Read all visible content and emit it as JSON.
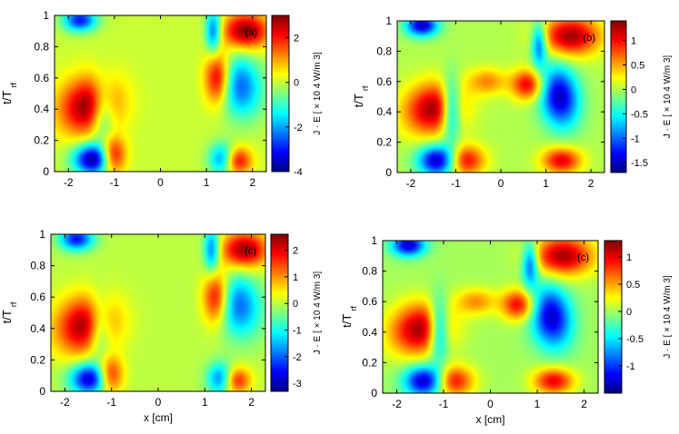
{
  "chart_data": [
    {
      "type": "heatmap",
      "panel_label": "(a)",
      "ylabel": "t/T",
      "ylabel_sub": "rf",
      "xlabel": "",
      "xlim": [
        -2.3,
        2.3
      ],
      "ylim": [
        0,
        1
      ],
      "xticks": [
        "-2",
        "-1",
        "0",
        "1",
        "2"
      ],
      "xtick_values": [
        -2,
        -1,
        0,
        1,
        2
      ],
      "yticks": [
        "0",
        "0.2",
        "0.4",
        "0.6",
        "0.8",
        "1"
      ],
      "ytick_values": [
        0,
        0.2,
        0.4,
        0.6,
        0.8,
        1
      ],
      "colorbar_label": "J · E [ × 10 4 W/m 3]",
      "colorbar_range": [
        -4,
        3
      ],
      "colorbar_ticks": [
        "2",
        "0",
        "-2",
        "-4"
      ],
      "colorbar_tick_values": [
        2,
        0,
        -2,
        -4
      ],
      "grid": false,
      "features": [
        {
          "x": -1.55,
          "t": 0.42,
          "amp": 3.0,
          "sx": 0.45,
          "st": 0.13,
          "tilt": 0.35
        },
        {
          "x": -1.25,
          "t": 0.38,
          "amp": -2.0,
          "sx": 0.18,
          "st": 0.14,
          "tilt": 0.0
        },
        {
          "x": -1.45,
          "t": 0.08,
          "amp": -4.0,
          "sx": 0.3,
          "st": 0.07,
          "tilt": 0.0
        },
        {
          "x": -1.05,
          "t": 0.1,
          "amp": 3.0,
          "sx": 0.2,
          "st": 0.08,
          "tilt": 0.0
        },
        {
          "x": -1.75,
          "t": 0.97,
          "amp": -3.0,
          "sx": 0.25,
          "st": 0.05,
          "tilt": 0.0
        },
        {
          "x": 1.25,
          "t": 0.6,
          "amp": 3.0,
          "sx": 0.2,
          "st": 0.12,
          "tilt": 0.0
        },
        {
          "x": 1.7,
          "t": 0.55,
          "amp": -2.5,
          "sx": 0.35,
          "st": 0.14,
          "tilt": -0.3
        },
        {
          "x": 1.85,
          "t": 0.9,
          "amp": 3.0,
          "sx": 0.35,
          "st": 0.08,
          "tilt": 0.0
        },
        {
          "x": 1.35,
          "t": 0.08,
          "amp": -2.5,
          "sx": 0.2,
          "st": 0.07,
          "tilt": 0.0
        },
        {
          "x": 1.65,
          "t": 0.07,
          "amp": 2.5,
          "sx": 0.22,
          "st": 0.06,
          "tilt": 0.0
        },
        {
          "x": 1.15,
          "t": 0.9,
          "amp": -2.5,
          "sx": 0.12,
          "st": 0.1,
          "tilt": 0.0
        }
      ]
    },
    {
      "type": "heatmap",
      "panel_label": "(b)",
      "ylabel": "t/T",
      "ylabel_sub": "rf",
      "xlabel": "",
      "xlim": [
        -2.3,
        2.3
      ],
      "ylim": [
        0,
        1
      ],
      "xticks": [
        "-2",
        "-1",
        "0",
        "1",
        "2"
      ],
      "xtick_values": [
        -2,
        -1,
        0,
        1,
        2
      ],
      "yticks": [
        "0",
        "0.2",
        "0.4",
        "0.6",
        "0.8",
        "1"
      ],
      "ytick_values": [
        0,
        0.2,
        0.4,
        0.6,
        0.8,
        1
      ],
      "colorbar_label": "J · E [ × 10 4 W/m 3]",
      "colorbar_range": [
        -1.7,
        1.4
      ],
      "colorbar_ticks": [
        "1",
        "0.5",
        "0",
        "-0.5",
        "-1",
        "-1.5"
      ],
      "colorbar_tick_values": [
        1,
        0.5,
        0,
        -0.5,
        -1,
        -1.5
      ],
      "grid": false,
      "features": [
        {
          "x": -1.5,
          "t": 0.42,
          "amp": 1.3,
          "sx": 0.45,
          "st": 0.12,
          "tilt": 0.35
        },
        {
          "x": -1.1,
          "t": 0.42,
          "amp": -1.2,
          "sx": 0.15,
          "st": 0.14,
          "tilt": 0.0
        },
        {
          "x": -1.4,
          "t": 0.08,
          "amp": -1.6,
          "sx": 0.3,
          "st": 0.07,
          "tilt": 0.0
        },
        {
          "x": -0.8,
          "t": 0.08,
          "amp": 1.1,
          "sx": 0.3,
          "st": 0.07,
          "tilt": 0.0
        },
        {
          "x": -0.3,
          "t": 0.6,
          "amp": 0.6,
          "sx": 0.3,
          "st": 0.06,
          "tilt": 0.0
        },
        {
          "x": 0.6,
          "t": 0.58,
          "amp": 1.1,
          "sx": 0.25,
          "st": 0.07,
          "tilt": 0.0
        },
        {
          "x": 1.3,
          "t": 0.5,
          "amp": -1.5,
          "sx": 0.3,
          "st": 0.14,
          "tilt": -0.3
        },
        {
          "x": 1.55,
          "t": 0.9,
          "amp": 1.3,
          "sx": 0.45,
          "st": 0.09,
          "tilt": 0.0
        },
        {
          "x": 1.35,
          "t": 0.08,
          "amp": 1.1,
          "sx": 0.3,
          "st": 0.06,
          "tilt": 0.0
        },
        {
          "x": -1.75,
          "t": 0.97,
          "amp": -1.5,
          "sx": 0.25,
          "st": 0.05,
          "tilt": 0.0
        },
        {
          "x": 0.85,
          "t": 0.85,
          "amp": -1.1,
          "sx": 0.12,
          "st": 0.1,
          "tilt": 0.0
        }
      ]
    },
    {
      "type": "heatmap",
      "panel_label": "(c)",
      "ylabel": "t/T",
      "ylabel_sub": "rf",
      "xlabel": "x [cm]",
      "xlim": [
        -2.3,
        2.3
      ],
      "ylim": [
        0,
        1
      ],
      "xticks": [
        "-2",
        "-1",
        "0",
        "1",
        "2"
      ],
      "xtick_values": [
        -2,
        -1,
        0,
        1,
        2
      ],
      "yticks": [
        "0",
        "0.2",
        "0.4",
        "0.6",
        "0.8",
        "1"
      ],
      "ytick_values": [
        0,
        0.2,
        0.4,
        0.6,
        0.8,
        1
      ],
      "colorbar_label": "J · E [ × 10 4 W/m 3]",
      "colorbar_range": [
        -3.3,
        2.6
      ],
      "colorbar_ticks": [
        "2",
        "1",
        "0",
        "-1",
        "-2",
        "-3"
      ],
      "colorbar_tick_values": [
        2,
        1,
        0,
        -1,
        -2,
        -3
      ],
      "grid": false,
      "features": [
        {
          "x": -1.55,
          "t": 0.42,
          "amp": 2.5,
          "sx": 0.45,
          "st": 0.13,
          "tilt": 0.35
        },
        {
          "x": -1.25,
          "t": 0.4,
          "amp": -1.6,
          "sx": 0.18,
          "st": 0.14,
          "tilt": 0.0
        },
        {
          "x": -1.45,
          "t": 0.08,
          "amp": -3.0,
          "sx": 0.3,
          "st": 0.07,
          "tilt": 0.0
        },
        {
          "x": -1.05,
          "t": 0.1,
          "amp": 2.3,
          "sx": 0.2,
          "st": 0.08,
          "tilt": 0.0
        },
        {
          "x": -1.75,
          "t": 0.97,
          "amp": -2.5,
          "sx": 0.25,
          "st": 0.05,
          "tilt": 0.0
        },
        {
          "x": 1.25,
          "t": 0.6,
          "amp": 2.4,
          "sx": 0.2,
          "st": 0.12,
          "tilt": 0.0
        },
        {
          "x": 1.7,
          "t": 0.55,
          "amp": -2.0,
          "sx": 0.35,
          "st": 0.14,
          "tilt": -0.3
        },
        {
          "x": 1.85,
          "t": 0.9,
          "amp": 2.5,
          "sx": 0.35,
          "st": 0.08,
          "tilt": 0.0
        },
        {
          "x": 1.35,
          "t": 0.08,
          "amp": -2.2,
          "sx": 0.2,
          "st": 0.07,
          "tilt": 0.0
        },
        {
          "x": 1.65,
          "t": 0.07,
          "amp": 2.0,
          "sx": 0.22,
          "st": 0.06,
          "tilt": 0.0
        },
        {
          "x": 1.15,
          "t": 0.9,
          "amp": -2.0,
          "sx": 0.12,
          "st": 0.1,
          "tilt": 0.0
        }
      ]
    },
    {
      "type": "heatmap",
      "panel_label": "(c)",
      "ylabel": "t/T",
      "ylabel_sub": "rf",
      "xlabel": "x [cm]",
      "xlim": [
        -2.3,
        2.3
      ],
      "ylim": [
        0,
        1
      ],
      "xticks": [
        "-2",
        "-1",
        "0",
        "1",
        "2"
      ],
      "xtick_values": [
        -2,
        -1,
        0,
        1,
        2
      ],
      "yticks": [
        "0",
        "0.2",
        "0.4",
        "0.6",
        "0.8",
        "1"
      ],
      "ytick_values": [
        0,
        0.2,
        0.4,
        0.6,
        0.8,
        1
      ],
      "colorbar_label": "J · E [ × 10 4 W/m 3]",
      "colorbar_range": [
        -1.5,
        1.3
      ],
      "colorbar_ticks": [
        "1",
        "0.5",
        "0",
        "-0.5",
        "-1"
      ],
      "colorbar_tick_values": [
        1,
        0.5,
        0,
        -0.5,
        -1
      ],
      "grid": false,
      "features": [
        {
          "x": -1.5,
          "t": 0.42,
          "amp": 1.2,
          "sx": 0.45,
          "st": 0.12,
          "tilt": 0.35
        },
        {
          "x": -1.1,
          "t": 0.42,
          "amp": -1.1,
          "sx": 0.15,
          "st": 0.14,
          "tilt": 0.0
        },
        {
          "x": -1.4,
          "t": 0.08,
          "amp": -1.4,
          "sx": 0.3,
          "st": 0.07,
          "tilt": 0.0
        },
        {
          "x": -0.8,
          "t": 0.08,
          "amp": 1.0,
          "sx": 0.3,
          "st": 0.07,
          "tilt": 0.0
        },
        {
          "x": -0.3,
          "t": 0.6,
          "amp": 0.55,
          "sx": 0.3,
          "st": 0.06,
          "tilt": 0.0
        },
        {
          "x": 0.6,
          "t": 0.58,
          "amp": 1.0,
          "sx": 0.25,
          "st": 0.07,
          "tilt": 0.0
        },
        {
          "x": 1.3,
          "t": 0.5,
          "amp": -1.3,
          "sx": 0.3,
          "st": 0.14,
          "tilt": -0.3
        },
        {
          "x": 1.55,
          "t": 0.9,
          "amp": 1.2,
          "sx": 0.45,
          "st": 0.09,
          "tilt": 0.0
        },
        {
          "x": 1.35,
          "t": 0.08,
          "amp": 1.0,
          "sx": 0.3,
          "st": 0.06,
          "tilt": 0.0
        },
        {
          "x": -1.75,
          "t": 0.97,
          "amp": -1.3,
          "sx": 0.25,
          "st": 0.05,
          "tilt": 0.0
        },
        {
          "x": 0.85,
          "t": 0.85,
          "amp": -1.0,
          "sx": 0.12,
          "st": 0.1,
          "tilt": 0.0
        }
      ]
    }
  ]
}
